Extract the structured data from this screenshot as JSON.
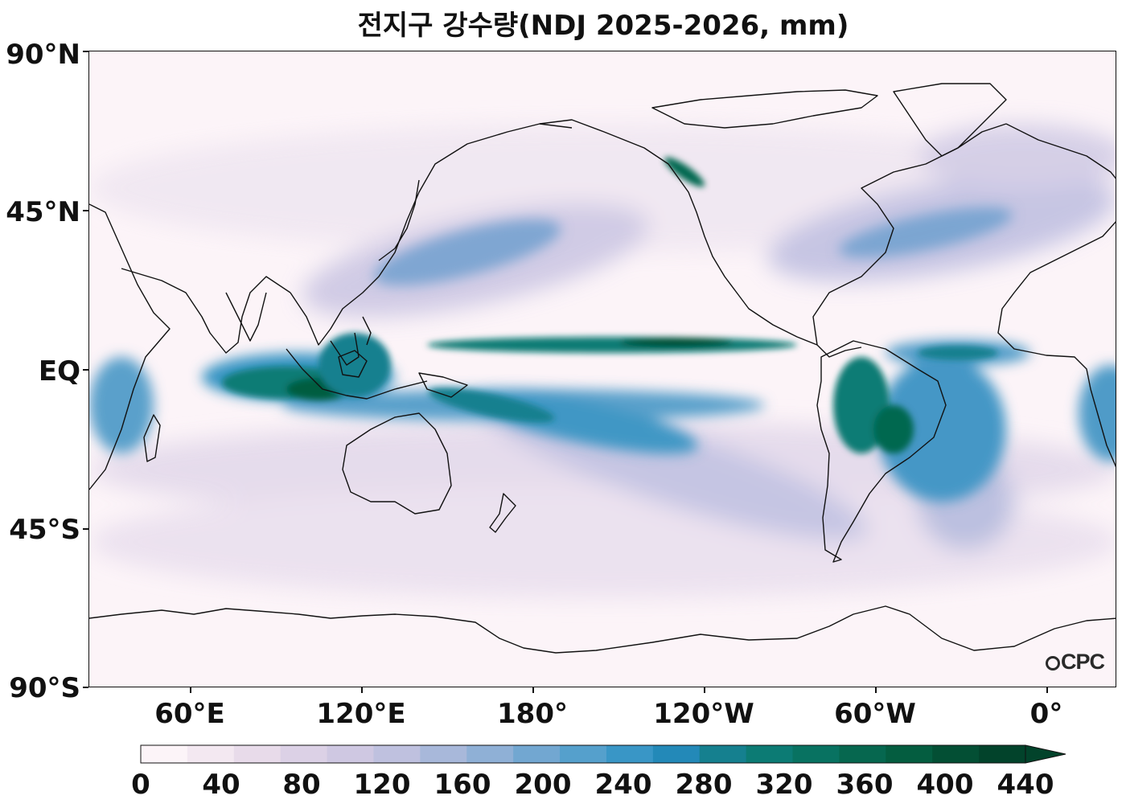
{
  "title": "전지구 강수량(NDJ 2025-2026, mm)",
  "lat_labels": [
    "90°N",
    "45°N",
    "EQ",
    "45°S",
    "90°S"
  ],
  "lon_labels": [
    "60°E",
    "120°E",
    "180°",
    "120°W",
    "60°W",
    "0°"
  ],
  "colorbar": {
    "ticks": [
      "0",
      "40",
      "80",
      "120",
      "160",
      "200",
      "240",
      "280",
      "320",
      "360",
      "400",
      "440"
    ],
    "colors": [
      "#fcf4f8",
      "#f3e8f1",
      "#e8dbea",
      "#dcd1e6",
      "#cfc8e2",
      "#bfc1df",
      "#a8b8da",
      "#8fb0d6",
      "#72a7d1",
      "#55a0cc",
      "#3996c6",
      "#2389b8",
      "#15808f",
      "#0c7b74",
      "#087261",
      "#06674f",
      "#045d40",
      "#034f34",
      "#02432b"
    ],
    "extend": "max"
  },
  "logo": "CPC",
  "palette": {
    "background": "#fcf4f8",
    "coastline": "#111111",
    "heavy_rain": "#03513a"
  }
}
